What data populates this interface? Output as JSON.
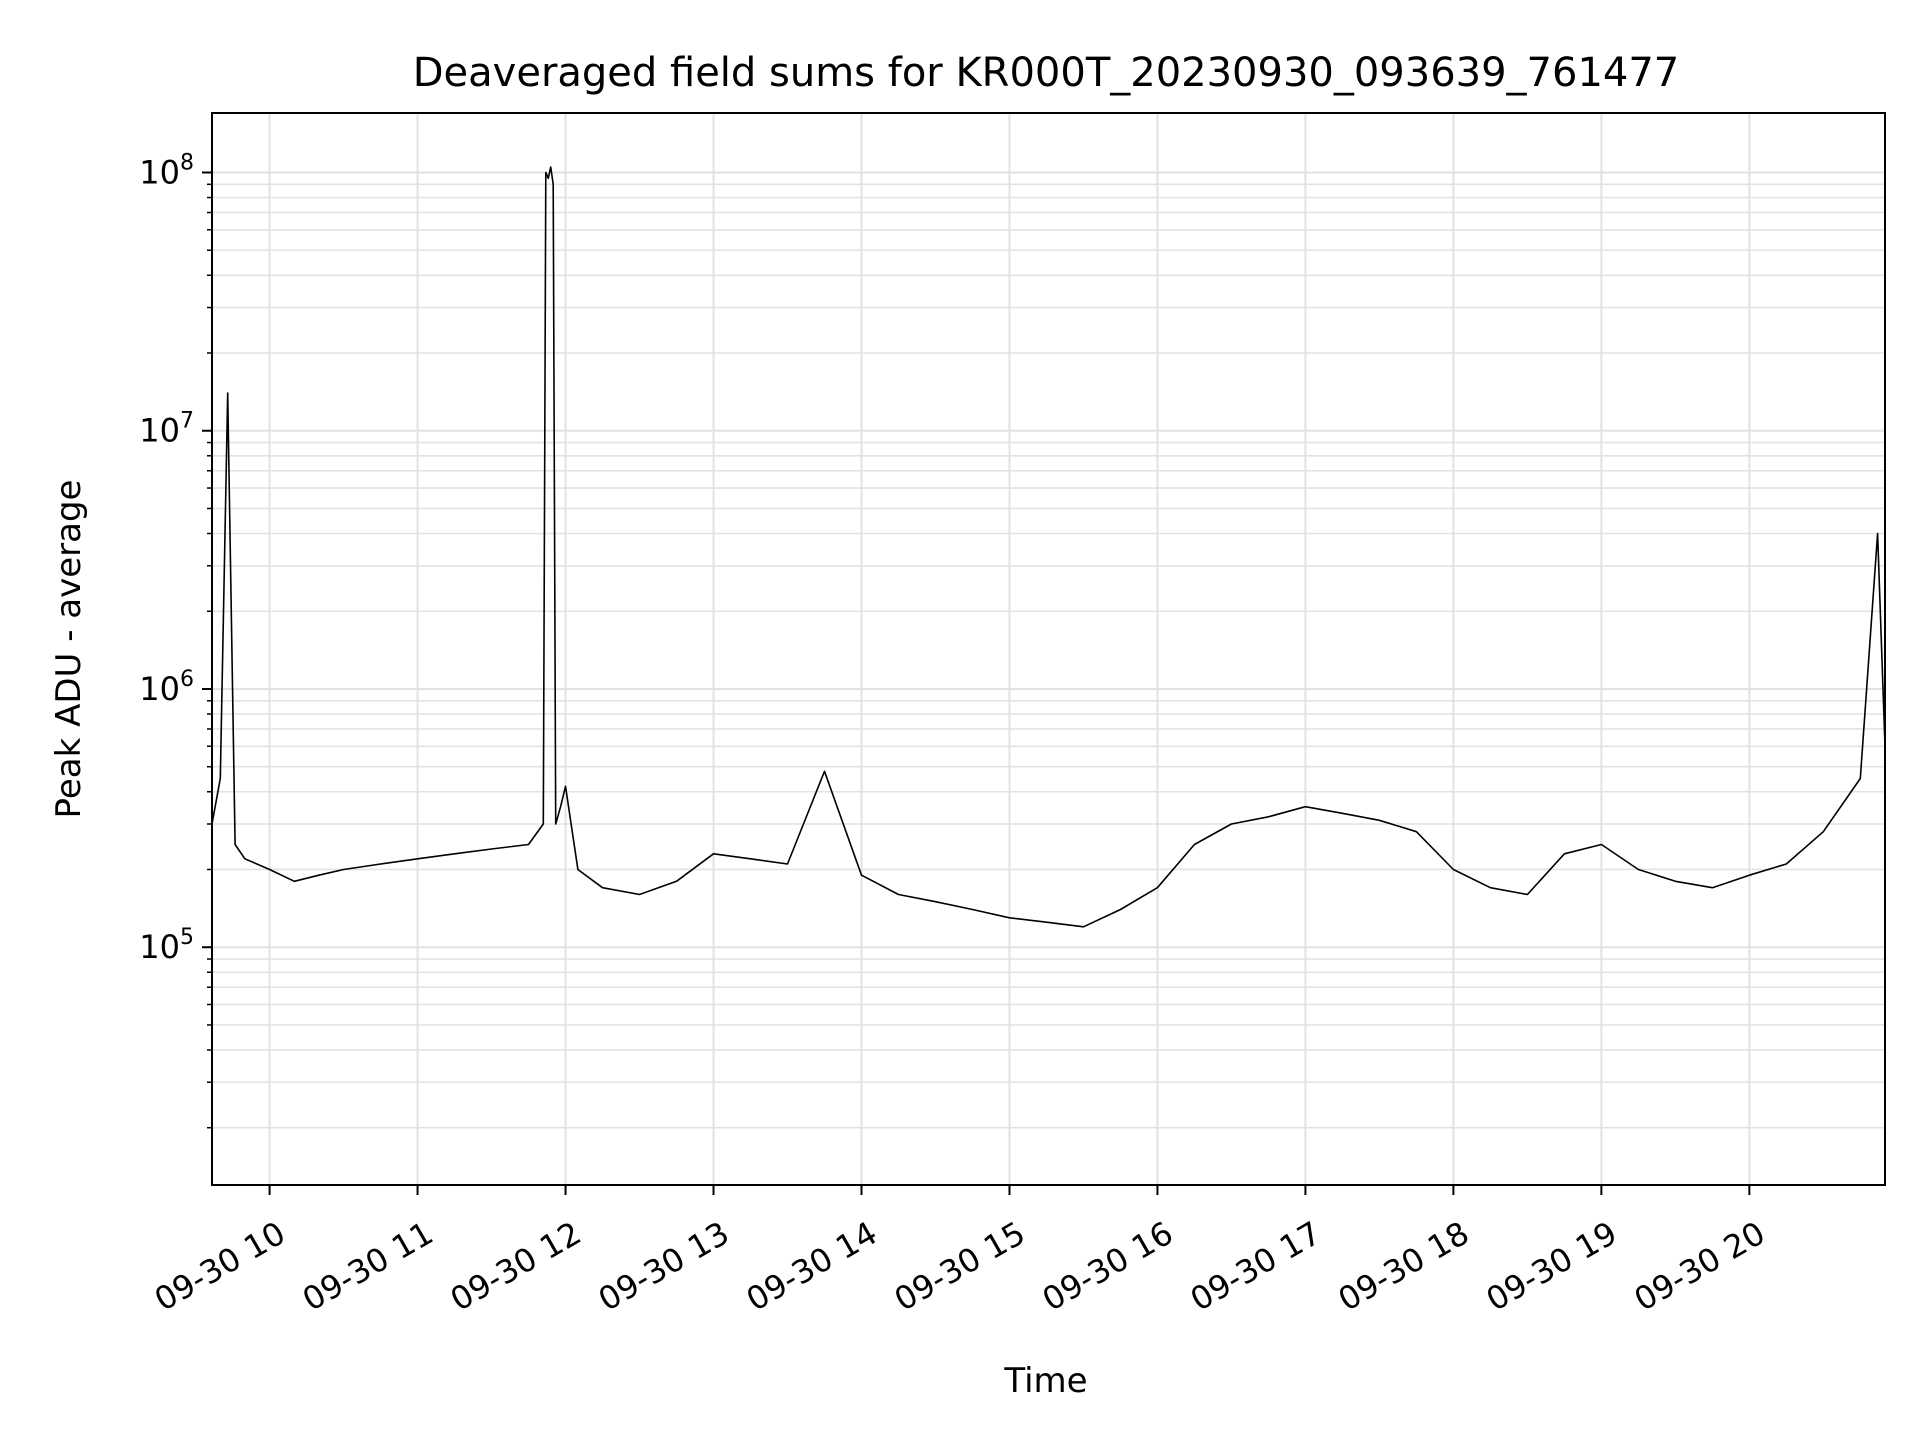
{
  "chart_data": {
    "type": "line",
    "title": "Deaveraged field sums for KR000T_20230930_093639_761477",
    "xlabel": "Time",
    "ylabel": "Peak ADU - average",
    "yscale": "log",
    "grid": true,
    "ylim": [
      12000,
      170000000
    ],
    "xlim": [
      "2023-09-30 09:36:39",
      "2023-09-30 20:55:00"
    ],
    "x_tick_labels": [
      "09-30 10",
      "09-30 11",
      "09-30 12",
      "09-30 13",
      "09-30 14",
      "09-30 15",
      "09-30 16",
      "09-30 17",
      "09-30 18",
      "09-30 19",
      "09-30 20"
    ],
    "y_tick_labels": [
      "10^5",
      "10^6",
      "10^7",
      "10^8"
    ],
    "line_color": "#000000",
    "series": [
      {
        "x": [
          "2023-09-30 09:36:39",
          "2023-09-30 09:40:00",
          "2023-09-30 09:43:00",
          "2023-09-30 09:46:00",
          "2023-09-30 09:50:00",
          "2023-09-30 10:00:00",
          "2023-09-30 10:10:00",
          "2023-09-30 10:20:00",
          "2023-09-30 10:30:00",
          "2023-09-30 10:45:00",
          "2023-09-30 11:00:00",
          "2023-09-30 11:15:00",
          "2023-09-30 11:30:00",
          "2023-09-30 11:45:00",
          "2023-09-30 11:51:00",
          "2023-09-30 11:52:00",
          "2023-09-30 11:53:00",
          "2023-09-30 11:54:00",
          "2023-09-30 11:55:00",
          "2023-09-30 11:56:00",
          "2023-09-30 11:58:00",
          "2023-09-30 12:00:00",
          "2023-09-30 12:05:00",
          "2023-09-30 12:15:00",
          "2023-09-30 12:30:00",
          "2023-09-30 12:45:00",
          "2023-09-30 13:00:00",
          "2023-09-30 13:15:00",
          "2023-09-30 13:30:00",
          "2023-09-30 13:45:00",
          "2023-09-30 14:00:00",
          "2023-09-30 14:15:00",
          "2023-09-30 14:30:00",
          "2023-09-30 14:45:00",
          "2023-09-30 15:00:00",
          "2023-09-30 15:15:00",
          "2023-09-30 15:30:00",
          "2023-09-30 15:45:00",
          "2023-09-30 16:00:00",
          "2023-09-30 16:15:00",
          "2023-09-30 16:30:00",
          "2023-09-30 16:45:00",
          "2023-09-30 17:00:00",
          "2023-09-30 17:15:00",
          "2023-09-30 17:30:00",
          "2023-09-30 17:45:00",
          "2023-09-30 18:00:00",
          "2023-09-30 18:15:00",
          "2023-09-30 18:30:00",
          "2023-09-30 18:45:00",
          "2023-09-30 19:00:00",
          "2023-09-30 19:15:00",
          "2023-09-30 19:30:00",
          "2023-09-30 19:45:00",
          "2023-09-30 20:00:00",
          "2023-09-30 20:15:00",
          "2023-09-30 20:30:00",
          "2023-09-30 20:45:00",
          "2023-09-30 20:52:00",
          "2023-09-30 20:55:00"
        ],
        "values": [
          300000,
          450000,
          14000000,
          250000,
          220000,
          200000,
          180000,
          190000,
          200000,
          210000,
          220000,
          230000,
          240000,
          250000,
          300000,
          100000000,
          95000000,
          105000000,
          90000000,
          300000,
          350000,
          420000,
          200000,
          170000,
          160000,
          180000,
          230000,
          220000,
          210000,
          480000,
          190000,
          160000,
          150000,
          140000,
          130000,
          125000,
          120000,
          140000,
          170000,
          250000,
          300000,
          320000,
          350000,
          330000,
          310000,
          280000,
          200000,
          170000,
          160000,
          230000,
          250000,
          200000,
          180000,
          170000,
          190000,
          210000,
          280000,
          450000,
          4000000,
          600000
        ]
      }
    ]
  }
}
